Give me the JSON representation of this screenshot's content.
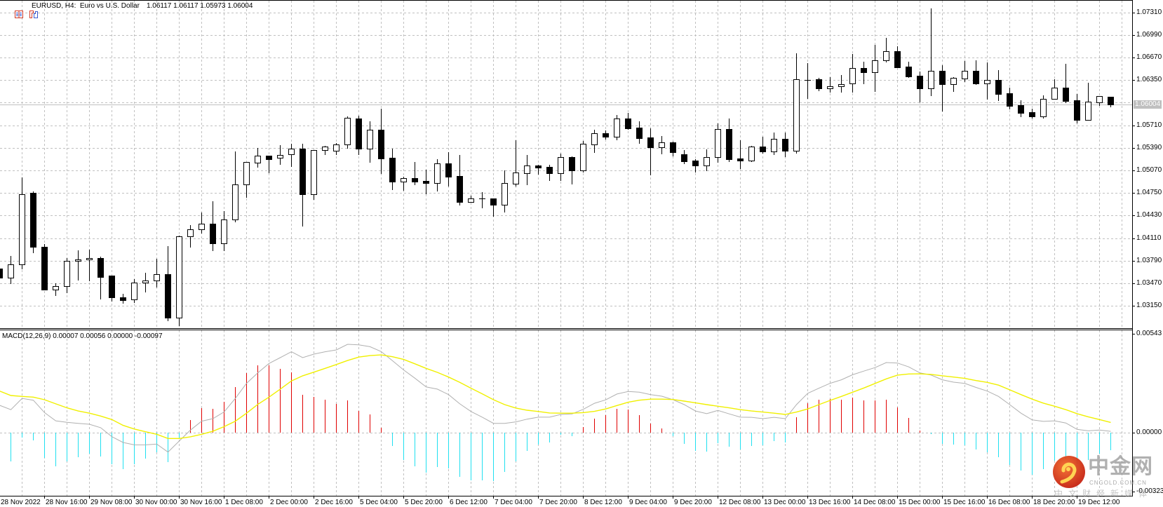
{
  "header": {
    "title": "EURUSD, H4:  Euro vs U.S. Dollar",
    "ohlc": "1.06117 1.06117 1.05973 1.06004",
    "icons": [
      "market-watch-icon",
      "chart-window-icon"
    ]
  },
  "indicator_panel": {
    "label": "MACD(12,26,9) 0.00007 0.00056 0.00000 -0.00097"
  },
  "price_axis": {
    "labels": [
      "1.07310",
      "1.06990",
      "1.06670",
      "1.06350",
      "1.05710",
      "1.05390",
      "1.05070",
      "1.04750",
      "1.04430",
      "1.04110",
      "1.03790",
      "1.03470",
      "1.03150"
    ],
    "bid_label": "1.06004"
  },
  "macd_axis": {
    "labels": [
      "0.00543",
      "0.00000",
      "-0.00323"
    ]
  },
  "time_axis": {
    "labels": [
      "28 Nov 2022",
      "28 Nov 16:00",
      "29 Nov 08:00",
      "30 Nov 00:00",
      "30 Nov 16:00",
      "1 Dec 08:00",
      "2 Dec 00:00",
      "2 Dec 16:00",
      "5 Dec 04:00",
      "5 Dec 20:00",
      "6 Dec 12:00",
      "7 Dec 04:00",
      "7 Dec 20:00",
      "8 Dec 12:00",
      "9 Dec 04:00",
      "9 Dec 20:00",
      "12 Dec 08:00",
      "13 Dec 00:00",
      "13 Dec 16:00",
      "14 Dec 08:00",
      "15 Dec 00:00",
      "15 Dec 16:00",
      "16 Dec 08:00",
      "18 Dec 20:00",
      "19 Dec 12:00"
    ]
  },
  "watermark": {
    "brand": "中金网",
    "domain": "CNGOLD.COM.CN",
    "tagline": "中文财经新媒体"
  },
  "colors": {
    "background": "#ffffff",
    "bull_body": "#ffffff",
    "bear_body": "#000000",
    "candle_outline": "#000000",
    "grid": "#c0c0c0",
    "bid_line": "#c0c0c0",
    "bid_label_bg": "#c0c0c0",
    "macd_line": "#b0b0b0",
    "signal_line": "#f0f000",
    "hist_positive": "#e00000",
    "hist_negative": "#20e0f0",
    "axis": "#000000"
  },
  "chart_data": {
    "type": "candlestick",
    "title": "EURUSD, H4: Euro vs U.S. Dollar",
    "symbol": "EURUSD",
    "timeframe": "H4",
    "xlabel": "",
    "ylabel": "",
    "grid": true,
    "legend": "none",
    "last_bar": {
      "open": 1.06117,
      "high": 1.06117,
      "low": 1.05973,
      "close": 1.06004
    },
    "bid": 1.06004,
    "x_tick_every_bars": 4,
    "price_ylim": [
      1.02833,
      1.07484
    ],
    "price_grid_step": 0.0032,
    "ohlc_fields": [
      "open",
      "high",
      "low",
      "close"
    ],
    "ohlc": [
      [
        1.03674,
        1.03697,
        1.03532,
        1.03549
      ],
      [
        1.03549,
        1.03852,
        1.03466,
        1.0374
      ],
      [
        1.03737,
        1.04968,
        1.03674,
        1.04731
      ],
      [
        1.04747,
        1.04774,
        1.03905,
        1.03981
      ],
      [
        1.03988,
        1.04021,
        1.03377,
        1.03377
      ],
      [
        1.03383,
        1.03473,
        1.03301,
        1.03433
      ],
      [
        1.0343,
        1.03829,
        1.0334,
        1.0379
      ],
      [
        1.03786,
        1.03941,
        1.03515,
        1.03809
      ],
      [
        1.03806,
        1.03945,
        1.03506,
        1.03829
      ],
      [
        1.03829,
        1.03842,
        1.03251,
        1.03555
      ],
      [
        1.03575,
        1.03575,
        1.03218,
        1.03268
      ],
      [
        1.03274,
        1.03317,
        1.03192,
        1.03231
      ],
      [
        1.03241,
        1.03532,
        1.03202,
        1.03482
      ],
      [
        1.03479,
        1.03615,
        1.0335,
        1.03512
      ],
      [
        1.03509,
        1.03813,
        1.03416,
        1.03595
      ],
      [
        1.03595,
        1.03998,
        1.02944,
        1.02984
      ],
      [
        1.02984,
        1.04149,
        1.02868,
        1.04136
      ],
      [
        1.04136,
        1.04298,
        1.03984,
        1.04235
      ],
      [
        1.04235,
        1.04476,
        1.04183,
        1.04315
      ],
      [
        1.04318,
        1.04635,
        1.03935,
        1.04034
      ],
      [
        1.04034,
        1.04496,
        1.03938,
        1.04374
      ],
      [
        1.04374,
        1.05338,
        1.04341,
        1.04869
      ],
      [
        1.04869,
        1.05193,
        1.04688,
        1.05186
      ],
      [
        1.05183,
        1.05391,
        1.05114,
        1.05275
      ],
      [
        1.05275,
        1.05275,
        1.05044,
        1.05233
      ],
      [
        1.05246,
        1.05427,
        1.05163,
        1.05285
      ],
      [
        1.05295,
        1.05447,
        1.05124,
        1.05374
      ],
      [
        1.05374,
        1.05447,
        1.04282,
        1.04727
      ],
      [
        1.04731,
        1.05355,
        1.04658,
        1.05355
      ],
      [
        1.05355,
        1.05417,
        1.05302,
        1.05404
      ],
      [
        1.05345,
        1.0546,
        1.05302,
        1.05434
      ],
      [
        1.05434,
        1.05834,
        1.05391,
        1.05811
      ],
      [
        1.05804,
        1.05844,
        1.05298,
        1.0538
      ],
      [
        1.0538,
        1.05765,
        1.05192,
        1.05645
      ],
      [
        1.05645,
        1.05944,
        1.05032,
        1.05238
      ],
      [
        1.05248,
        1.0538,
        1.04801,
        1.04913
      ],
      [
        1.04913,
        1.04979,
        1.04791,
        1.04956
      ],
      [
        1.0496,
        1.05192,
        1.0487,
        1.04913
      ],
      [
        1.0492,
        1.05079,
        1.04738,
        1.04893
      ],
      [
        1.04893,
        1.05228,
        1.04781,
        1.05165
      ],
      [
        1.05168,
        1.05327,
        1.0485,
        1.04983
      ],
      [
        1.04989,
        1.05288,
        1.04585,
        1.04625
      ],
      [
        1.04625,
        1.04711,
        1.04625,
        1.04668
      ],
      [
        1.04668,
        1.04758,
        1.04545,
        1.04668
      ],
      [
        1.04668,
        1.04668,
        1.0442,
        1.04585
      ],
      [
        1.04585,
        1.05066,
        1.04483,
        1.04887
      ],
      [
        1.04883,
        1.05496,
        1.0485,
        1.05036
      ],
      [
        1.05033,
        1.05288,
        1.0487,
        1.05135
      ],
      [
        1.05135,
        1.05148,
        1.05019,
        1.05112
      ],
      [
        1.05115,
        1.05145,
        1.04933,
        1.05033
      ],
      [
        1.05033,
        1.05307,
        1.04933,
        1.05254
      ],
      [
        1.05254,
        1.05268,
        1.04883,
        1.05069
      ],
      [
        1.05072,
        1.05486,
        1.05052,
        1.05443
      ],
      [
        1.0544,
        1.05645,
        1.05331,
        1.05592
      ],
      [
        1.05592,
        1.05632,
        1.05516,
        1.05549
      ],
      [
        1.05549,
        1.05854,
        1.05506,
        1.05801
      ],
      [
        1.05801,
        1.05884,
        1.05655,
        1.05669
      ],
      [
        1.05672,
        1.05765,
        1.0546,
        1.0553
      ],
      [
        1.05533,
        1.05665,
        1.05013,
        1.054
      ],
      [
        1.054,
        1.05556,
        1.05307,
        1.05463
      ],
      [
        1.05466,
        1.05476,
        1.05278,
        1.05331
      ],
      [
        1.05298,
        1.05357,
        1.05168,
        1.05201
      ],
      [
        1.05205,
        1.05225,
        1.05049,
        1.05142
      ],
      [
        1.05142,
        1.05367,
        1.05069,
        1.05254
      ],
      [
        1.05254,
        1.05738,
        1.05191,
        1.05652
      ],
      [
        1.05655,
        1.05804,
        1.05201,
        1.05231
      ],
      [
        1.05238,
        1.05496,
        1.05099,
        1.05212
      ],
      [
        1.05211,
        1.05417,
        1.05198,
        1.05403
      ],
      [
        1.05403,
        1.05546,
        1.05317,
        1.0534
      ],
      [
        1.0534,
        1.05602,
        1.05297,
        1.05513
      ],
      [
        1.05516,
        1.05602,
        1.05271,
        1.0535
      ],
      [
        1.0535,
        1.06729,
        1.05317,
        1.06358
      ],
      [
        1.06354,
        1.06589,
        1.06092,
        1.06354
      ],
      [
        1.06361,
        1.06381,
        1.06202,
        1.06235
      ],
      [
        1.06235,
        1.06391,
        1.06185,
        1.06258
      ],
      [
        1.06258,
        1.0642,
        1.06182,
        1.06288
      ],
      [
        1.06298,
        1.06719,
        1.06185,
        1.06517
      ],
      [
        1.06517,
        1.06606,
        1.06301,
        1.06464
      ],
      [
        1.06464,
        1.06848,
        1.06192,
        1.06626
      ],
      [
        1.06633,
        1.06947,
        1.06613,
        1.06758
      ],
      [
        1.06758,
        1.06828,
        1.06533,
        1.06533
      ],
      [
        1.0654,
        1.06609,
        1.06391,
        1.06404
      ],
      [
        1.06411,
        1.0647,
        1.06039,
        1.06235
      ],
      [
        1.06235,
        1.07365,
        1.06132,
        1.0648
      ],
      [
        1.0648,
        1.0656,
        1.05914,
        1.06295
      ],
      [
        1.06295,
        1.06391,
        1.06192,
        1.06381
      ],
      [
        1.06374,
        1.06623,
        1.06331,
        1.0648
      ],
      [
        1.0648,
        1.06629,
        1.06295,
        1.06305
      ],
      [
        1.06305,
        1.06599,
        1.06083,
        1.06348
      ],
      [
        1.06351,
        1.0649,
        1.06063,
        1.06155
      ],
      [
        1.06162,
        1.06242,
        1.05943,
        1.05986
      ],
      [
        1.05993,
        1.06063,
        1.05834,
        1.05884
      ],
      [
        1.05894,
        1.05943,
        1.05818,
        1.05837
      ],
      [
        1.05837,
        1.06132,
        1.05818,
        1.06079
      ],
      [
        1.06079,
        1.06364,
        1.06079,
        1.06238
      ],
      [
        1.06238,
        1.0658,
        1.06033,
        1.06056
      ],
      [
        1.06063,
        1.06152,
        1.05745,
        1.05788
      ],
      [
        1.05788,
        1.06311,
        1.05788,
        1.06039
      ],
      [
        1.06036,
        1.06122,
        1.05993,
        1.06122
      ],
      [
        1.06117,
        1.06117,
        1.05973,
        1.06004
      ]
    ],
    "indicator": {
      "name": "MACD",
      "params": [
        12,
        26,
        9
      ],
      "ylim": [
        -0.00339,
        0.00562
      ],
      "ticks": [
        0.00543,
        0.0,
        -0.00323
      ],
      "current": {
        "macd": 7e-05,
        "signal": 0.00056,
        "hist_up": 0.0,
        "hist_down": -0.00097
      },
      "macd": [
        0.0015,
        0.00126,
        0.00188,
        0.00178,
        0.0011,
        0.00065,
        0.00057,
        0.00051,
        0.00046,
        0.00027,
        -0.00022,
        -0.00054,
        -0.00067,
        -0.00067,
        -0.00063,
        -0.00107,
        -0.00046,
        0.00014,
        0.00063,
        0.00077,
        0.00114,
        0.00188,
        0.00271,
        0.00328,
        0.0038,
        0.00412,
        0.00444,
        0.00412,
        0.00431,
        0.00444,
        0.00454,
        0.00485,
        0.00482,
        0.00472,
        0.00445,
        0.00395,
        0.00344,
        0.00299,
        0.00251,
        0.00239,
        0.00209,
        0.00158,
        0.00116,
        0.00085,
        0.00051,
        0.00051,
        0.00059,
        0.00074,
        0.00085,
        0.00085,
        0.001,
        0.00103,
        0.00128,
        0.00161,
        0.0018,
        0.00212,
        0.00226,
        0.00222,
        0.00209,
        0.002,
        0.00181,
        0.00154,
        0.00119,
        0.00104,
        0.00122,
        0.00103,
        0.00085,
        0.00084,
        0.00077,
        0.00084,
        0.00077,
        0.00154,
        0.00216,
        0.00244,
        0.00271,
        0.0029,
        0.00318,
        0.00338,
        0.00357,
        0.00385,
        0.00382,
        0.00361,
        0.00328,
        0.00316,
        0.0029,
        0.00277,
        0.0027,
        0.00248,
        0.00228,
        0.00199,
        0.00154,
        0.00107,
        0.0007,
        0.00062,
        0.00065,
        0.00053,
        0.00018,
        0.0001,
        0.00014,
        7e-05
      ],
      "signal": [
        0.00228,
        0.00204,
        0.00199,
        0.00195,
        0.00181,
        0.00158,
        0.00136,
        0.00119,
        0.00107,
        0.00091,
        0.00072,
        0.0004,
        0.0002,
        5e-05,
        -9e-05,
        -0.00032,
        -0.00032,
        -0.00023,
        -9e-05,
        8e-05,
        0.00033,
        0.00063,
        0.00107,
        0.00155,
        0.00195,
        0.00239,
        0.00284,
        0.00312,
        0.00332,
        0.00353,
        0.00374,
        0.00396,
        0.00415,
        0.00423,
        0.00427,
        0.00417,
        0.00402,
        0.00378,
        0.00353,
        0.00331,
        0.00305,
        0.00276,
        0.00244,
        0.00213,
        0.00181,
        0.00154,
        0.00135,
        0.00123,
        0.00116,
        0.00108,
        0.00107,
        0.00107,
        0.0011,
        0.00117,
        0.0013,
        0.00149,
        0.00167,
        0.00178,
        0.00184,
        0.00184,
        0.00182,
        0.00173,
        0.00164,
        0.00154,
        0.00145,
        0.00136,
        0.00126,
        0.00119,
        0.00113,
        0.00107,
        0.001,
        0.00113,
        0.0013,
        0.00154,
        0.00177,
        0.00199,
        0.00222,
        0.00245,
        0.0027,
        0.00295,
        0.00316,
        0.00322,
        0.00323,
        0.0032,
        0.00312,
        0.00305,
        0.00298,
        0.00286,
        0.00276,
        0.00261,
        0.00235,
        0.00209,
        0.00184,
        0.00162,
        0.00145,
        0.00126,
        0.00104,
        0.00087,
        0.00072,
        0.00056
      ],
      "histogram": [
        -0.00156,
        -0.00159,
        -0.00026,
        -0.00044,
        -0.00137,
        -0.00186,
        -0.00159,
        -0.00136,
        -0.00114,
        -0.00132,
        -0.00174,
        -0.00201,
        -0.00174,
        -0.00144,
        -0.00109,
        -0.00163,
        -0.0003,
        0.00068,
        0.00136,
        0.00132,
        0.00171,
        0.00251,
        0.00328,
        0.00371,
        0.00371,
        0.00352,
        0.00332,
        0.00209,
        0.00198,
        0.00182,
        0.00159,
        0.00178,
        0.00121,
        0.00101,
        0.00027,
        -0.00075,
        -0.0015,
        -0.00184,
        -0.00219,
        -0.00187,
        -0.00198,
        -0.00241,
        -0.00262,
        -0.00261,
        -0.00267,
        -0.00214,
        -0.00157,
        -0.00099,
        -0.00064,
        -0.00053,
        -0.00013,
        -0.00018,
        0.00031,
        0.00077,
        0.00096,
        0.00131,
        0.00127,
        0.00096,
        0.0005,
        0.00023,
        -0.00018,
        -0.00062,
        -0.00101,
        -0.00104,
        -0.00059,
        -0.00076,
        -0.00091,
        -0.00072,
        -0.00069,
        -0.00045,
        -0.00053,
        0.00085,
        0.00162,
        0.00181,
        0.00185,
        0.00181,
        0.00193,
        0.00177,
        0.00177,
        0.00181,
        0.00139,
        0.00081,
        0.00012,
        -6e-05,
        -0.0006,
        -0.00065,
        -0.00069,
        -0.00091,
        -0.00107,
        -0.00134,
        -0.00176,
        -0.0021,
        -0.0023,
        -0.00201,
        -0.00155,
        -0.00146,
        -0.00172,
        -0.00149,
        -0.00114,
        -0.00097
      ]
    }
  }
}
